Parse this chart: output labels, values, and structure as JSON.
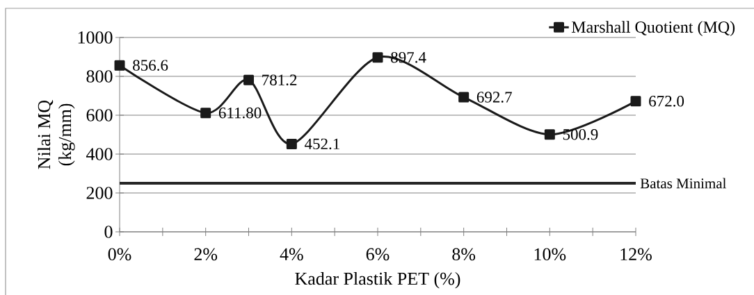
{
  "chart_data": {
    "type": "line",
    "xlabel": "Kadar Plastik PET (%)",
    "ylabel": "Nilai MQ (kg/mm)",
    "x": [
      0,
      2,
      3,
      4,
      6,
      8,
      10,
      12
    ],
    "series": [
      {
        "name": "Marshall Quotient (MQ)",
        "color": "#1a1a1a",
        "values": [
          856.6,
          611.8,
          781.2,
          452.1,
          897.4,
          692.7,
          500.9,
          672.0
        ],
        "value_labels": [
          "856.6",
          "611.80",
          "781.2",
          "452.1",
          "897.4",
          "692.7",
          "500.9",
          "672.0"
        ]
      }
    ],
    "xlim": [
      0,
      12
    ],
    "xticks": [
      {
        "value": 0,
        "label": "0%"
      },
      {
        "value": 1,
        "label": null
      },
      {
        "value": 2,
        "label": "2%"
      },
      {
        "value": 3,
        "label": null
      },
      {
        "value": 4,
        "label": "4%"
      },
      {
        "value": 5,
        "label": null
      },
      {
        "value": 6,
        "label": "6%"
      },
      {
        "value": 7,
        "label": null
      },
      {
        "value": 8,
        "label": "8%"
      },
      {
        "value": 9,
        "label": null
      },
      {
        "value": 10,
        "label": "10%"
      },
      {
        "value": 11,
        "label": null
      },
      {
        "value": 12,
        "label": "12%"
      }
    ],
    "ylim": [
      0,
      1000
    ],
    "yticks": [
      0,
      200,
      400,
      600,
      800,
      1000
    ],
    "ref_lines": [
      {
        "axis": "y",
        "value": 250,
        "label": "Batas Minimal",
        "color": "#262626"
      }
    ],
    "grid": "y",
    "legend": "top right",
    "marker": "square",
    "line_style": "solid"
  }
}
